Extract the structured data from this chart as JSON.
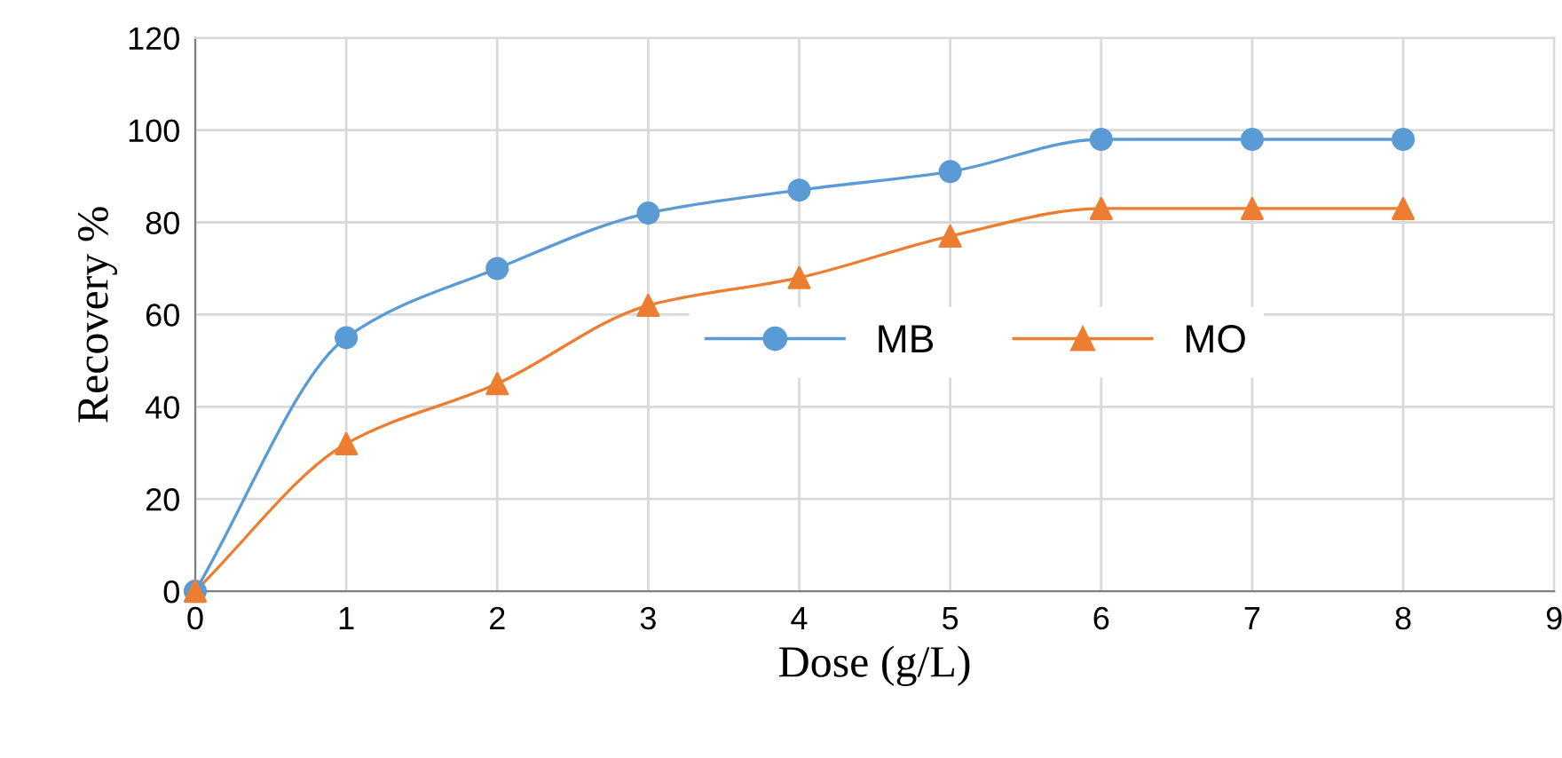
{
  "chart_data": {
    "type": "line",
    "xlabel": "Dose (g/L)",
    "ylabel": "Recovery %",
    "x": [
      0,
      1,
      2,
      3,
      4,
      5,
      6,
      7,
      8
    ],
    "series": [
      {
        "name": "MB",
        "color": "#5b9bd5",
        "marker": "circle",
        "values": [
          0,
          55,
          70,
          82,
          87,
          91,
          98,
          98,
          98
        ]
      },
      {
        "name": "MO",
        "color": "#ed7d31",
        "marker": "triangle",
        "values": [
          0,
          32,
          45,
          62,
          68,
          77,
          83,
          83,
          83
        ]
      }
    ],
    "xlim": [
      0,
      9
    ],
    "xticks": [
      0,
      1,
      2,
      3,
      4,
      5,
      6,
      7,
      8,
      9
    ],
    "ylim": [
      0,
      120
    ],
    "yticks": [
      0,
      20,
      40,
      60,
      80,
      100,
      120
    ],
    "grid": true,
    "legend": "right",
    "line_style": "solid"
  }
}
